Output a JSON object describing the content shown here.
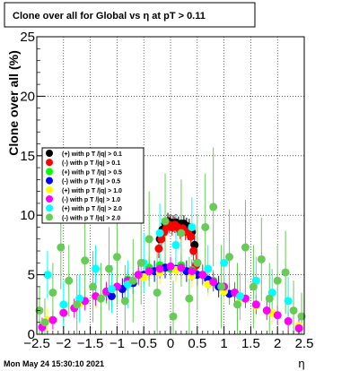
{
  "chart_data": {
    "type": "scatter",
    "title": "Clone  over all for Global vs   η at pT > 0.11",
    "ylabel": "Clone  over all (%)",
    "xlabel": "η",
    "xlim": [
      -2.5,
      2.5
    ],
    "ylim": [
      0,
      25
    ],
    "x_ticks": [
      -2.5,
      -2,
      -1.5,
      -1,
      -0.5,
      0,
      0.5,
      1,
      1.5,
      2,
      2.5
    ],
    "x_tick_labels": [
      "−2.5",
      "−2",
      "−1.5",
      "−1",
      "−0.5",
      "0",
      "0.5",
      "1",
      "1.5",
      "2",
      "2.5"
    ],
    "y_ticks": [
      0,
      5,
      10,
      15,
      20,
      25
    ],
    "y_tick_labels": [
      "0",
      "5",
      "10",
      "15",
      "20",
      "25"
    ],
    "grid": true,
    "legend_position": "middle-left",
    "timestamp": "Mon May 24 15:30:10 2021",
    "series": [
      {
        "name": "(+) with p T /|q| > 0.1",
        "color": "#000000",
        "x": [
          -0.2,
          -0.15,
          -0.1,
          -0.05,
          0,
          0.05,
          0.1,
          0.15,
          0.2,
          0.25,
          0.3,
          0.35,
          0.4,
          0.45,
          0.5
        ],
        "y": [
          8.0,
          8.8,
          9.3,
          9.5,
          9.4,
          9.3,
          9.4,
          9.2,
          9.3,
          9.3,
          9.1,
          9.0,
          8.6,
          7.5,
          6.0
        ],
        "err": [
          0.8,
          0.8,
          0.7,
          0.7,
          0.7,
          0.7,
          0.7,
          0.7,
          0.7,
          0.7,
          0.7,
          0.7,
          0.7,
          0.8,
          0.9
        ]
      },
      {
        "name": "(-) with p T /|q| > 0.1",
        "color": "#ff0000",
        "x": [
          -0.22,
          -0.17,
          -0.12,
          -0.07,
          -0.02,
          0.03,
          0.08,
          0.13,
          0.18,
          0.23,
          0.28,
          0.33,
          0.38,
          0.43,
          0.48
        ],
        "y": [
          7.2,
          8.0,
          8.6,
          9.0,
          9.2,
          9.0,
          9.2,
          9.0,
          8.7,
          8.9,
          8.6,
          8.6,
          8.2,
          7.0,
          5.8
        ],
        "err": [
          0.8,
          0.8,
          0.7,
          0.7,
          0.7,
          0.7,
          0.7,
          0.7,
          0.7,
          0.7,
          0.7,
          0.7,
          0.8,
          0.8,
          0.9
        ]
      },
      {
        "name": "(+) with p T /|q| > 0.5",
        "color": "#00ff00",
        "x": [
          -1.2,
          -1.0,
          -0.8,
          -0.6,
          -0.4,
          -0.2,
          0,
          0.2,
          0.4,
          0.6,
          0.8,
          1.0,
          1.2
        ],
        "y": [
          3.5,
          4.0,
          4.6,
          5.0,
          5.6,
          5.8,
          5.5,
          5.8,
          5.4,
          5.0,
          4.5,
          4.0,
          3.5
        ],
        "err": [
          0.9,
          0.9,
          0.9,
          0.9,
          0.9,
          0.9,
          0.9,
          0.9,
          0.9,
          0.9,
          0.9,
          0.9,
          0.9
        ]
      },
      {
        "name": "(-) with p T /|q| > 0.5",
        "color": "#0000ff",
        "x": [
          -1.1,
          -0.9,
          -0.7,
          -0.5,
          -0.3,
          -0.1,
          0.1,
          0.3,
          0.5,
          0.7,
          0.9,
          1.1
        ],
        "y": [
          3.2,
          3.8,
          4.3,
          5.0,
          5.3,
          5.6,
          5.5,
          5.3,
          5.0,
          4.6,
          4.0,
          3.4
        ],
        "err": [
          0.9,
          0.9,
          0.9,
          0.9,
          0.9,
          0.9,
          0.9,
          0.9,
          0.9,
          0.9,
          0.9,
          0.9
        ]
      },
      {
        "name": "(+) with p T /|q| > 1.0",
        "color": "#ffff00",
        "x": [
          -2.3,
          -2.0,
          -1.7,
          -1.4,
          -1.1,
          -0.8,
          -0.5,
          -0.2,
          0.1,
          0.4,
          0.7,
          1.0,
          1.3,
          1.6,
          1.9,
          2.2,
          2.4
        ],
        "y": [
          1.2,
          1.8,
          2.6,
          3.2,
          3.8,
          4.4,
          4.8,
          5.2,
          5.4,
          4.9,
          4.2,
          3.6,
          3.0,
          2.4,
          1.8,
          1.1,
          0.7
        ],
        "err": [
          1.0,
          1.0,
          1.0,
          1.0,
          1.0,
          1.0,
          1.0,
          1.0,
          1.0,
          1.0,
          1.0,
          1.0,
          1.0,
          1.0,
          1.0,
          1.0,
          1.0
        ]
      },
      {
        "name": "(-) with p T /|q| > 1.0",
        "color": "#ff00ff",
        "x": [
          -2.4,
          -2.2,
          -2.0,
          -1.8,
          -1.6,
          -1.4,
          -1.2,
          -1.0,
          -0.8,
          -0.6,
          -0.4,
          -0.2,
          0,
          0.2,
          0.4,
          0.6,
          0.8,
          1.0,
          1.2,
          1.4,
          1.6,
          1.8,
          2.0,
          2.2,
          2.4
        ],
        "y": [
          0.6,
          1.2,
          1.8,
          2.2,
          2.8,
          3.2,
          3.6,
          4.0,
          4.5,
          5.0,
          5.3,
          5.5,
          5.7,
          5.6,
          5.3,
          5.0,
          4.4,
          4.0,
          3.5,
          3.0,
          2.5,
          2.0,
          1.6,
          1.1,
          0.5
        ],
        "err": [
          0.8,
          0.8,
          0.8,
          0.8,
          0.8,
          0.8,
          0.8,
          0.8,
          0.8,
          0.8,
          0.8,
          0.8,
          0.8,
          0.8,
          0.8,
          0.8,
          0.8,
          0.8,
          0.8,
          0.8,
          0.8,
          0.8,
          0.8,
          0.8,
          0.8
        ]
      },
      {
        "name": "(+) with p T /|q| > 2.0",
        "color": "#00ffff",
        "x": [
          -2.3,
          -2.0,
          -1.7,
          -1.4,
          -1.1,
          -0.8,
          -0.5,
          -0.2,
          0.1,
          0.4,
          0.7,
          1.0,
          1.3,
          1.6,
          1.9,
          2.2
        ],
        "y": [
          5.0,
          2.5,
          3.0,
          5.5,
          3.8,
          4.2,
          6.0,
          8.5,
          7.5,
          9.0,
          5.5,
          6.0,
          3.2,
          4.5,
          3.5,
          2.8
        ],
        "err": [
          2.0,
          2.0,
          2.0,
          2.0,
          2.0,
          2.0,
          2.5,
          2.5,
          2.5,
          2.5,
          2.0,
          2.0,
          2.0,
          2.0,
          2.0,
          2.0
        ]
      },
      {
        "name": "(-) with p T /|q| > 2.0",
        "color": "#66cc55",
        "x": [
          -2.45,
          -2.35,
          -2.2,
          -2.05,
          -1.9,
          -1.75,
          -1.6,
          -1.45,
          -1.3,
          -1.15,
          -1.0,
          -0.85,
          -0.7,
          -0.55,
          -0.4,
          -0.25,
          -0.1,
          0.05,
          0.2,
          0.35,
          0.5,
          0.65,
          0.8,
          0.95,
          1.1,
          1.25,
          1.4,
          1.55,
          1.7,
          1.85,
          2.0,
          2.15,
          2.3,
          2.45
        ],
        "y": [
          2.0,
          1.0,
          3.5,
          7.3,
          4.5,
          2.5,
          6.2,
          4.0,
          3.0,
          5.5,
          6.5,
          2.8,
          4.5,
          6.0,
          8.0,
          3.5,
          9.5,
          1.5,
          8.5,
          3.0,
          6.0,
          9.0,
          10.7,
          4.0,
          6.5,
          2.5,
          7.3,
          4.0,
          6.3,
          3.0,
          4.5,
          5.2,
          2.0,
          1.5
        ],
        "err": [
          2.0,
          2.0,
          2.5,
          3.5,
          3.0,
          2.5,
          3.5,
          3.0,
          3.0,
          3.5,
          4.0,
          3.0,
          3.5,
          3.5,
          4.0,
          3.5,
          4.0,
          3.0,
          4.5,
          3.5,
          4.0,
          4.5,
          5.0,
          3.5,
          4.0,
          3.5,
          4.0,
          3.5,
          3.5,
          3.0,
          3.0,
          3.5,
          2.5,
          2.0
        ]
      }
    ]
  }
}
